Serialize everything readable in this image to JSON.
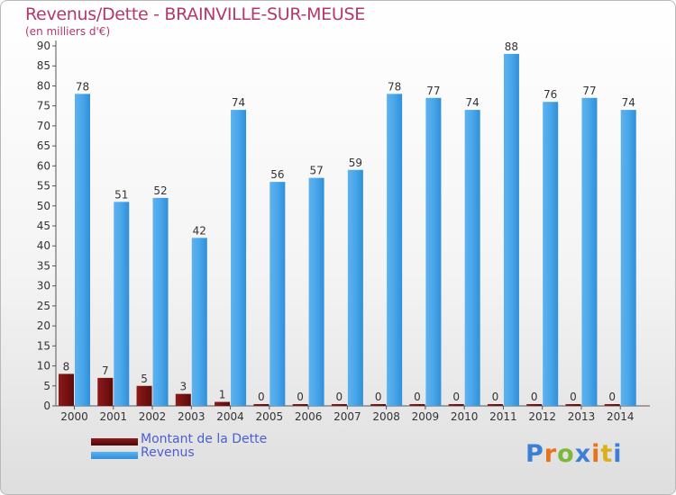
{
  "title": "Revenus/Dette - BRAINVILLE-SUR-MEUSE",
  "subtitle": "(en milliers d'€)",
  "chart_data": {
    "type": "bar",
    "categories": [
      "2000",
      "2001",
      "2002",
      "2003",
      "2004",
      "2005",
      "2006",
      "2007",
      "2008",
      "2009",
      "2010",
      "2011",
      "2012",
      "2013",
      "2014"
    ],
    "series": [
      {
        "name": "Montant de la Dette",
        "color": "#7a1010",
        "values": [
          8,
          7,
          5,
          3,
          1,
          0,
          0,
          0,
          0,
          0,
          0,
          0,
          0,
          0,
          0
        ]
      },
      {
        "name": "Revenus",
        "color": "#3d9ee2",
        "values": [
          78,
          51,
          52,
          42,
          74,
          56,
          57,
          59,
          78,
          77,
          74,
          88,
          76,
          77,
          74
        ]
      }
    ],
    "ylim": [
      0,
      90
    ],
    "yticks": [
      0,
      5,
      10,
      15,
      20,
      25,
      30,
      35,
      40,
      45,
      50,
      55,
      60,
      65,
      70,
      75,
      80,
      85,
      90
    ],
    "grid": false,
    "legend_position": "bottom-left"
  },
  "legend": [
    {
      "label": "Montant de la Dette",
      "color": "#6b0f0f"
    },
    {
      "label": "Revenus",
      "color": "#3d9ee2"
    }
  ],
  "brand": {
    "letters": [
      "P",
      "r",
      "o",
      "x",
      "i",
      "t",
      "i"
    ],
    "colors": [
      "#3d7fd4",
      "#e8731a",
      "#7bb93a",
      "#3d7fd4",
      "#e8731a",
      "#d9b21a",
      "#3d7fd4"
    ]
  }
}
